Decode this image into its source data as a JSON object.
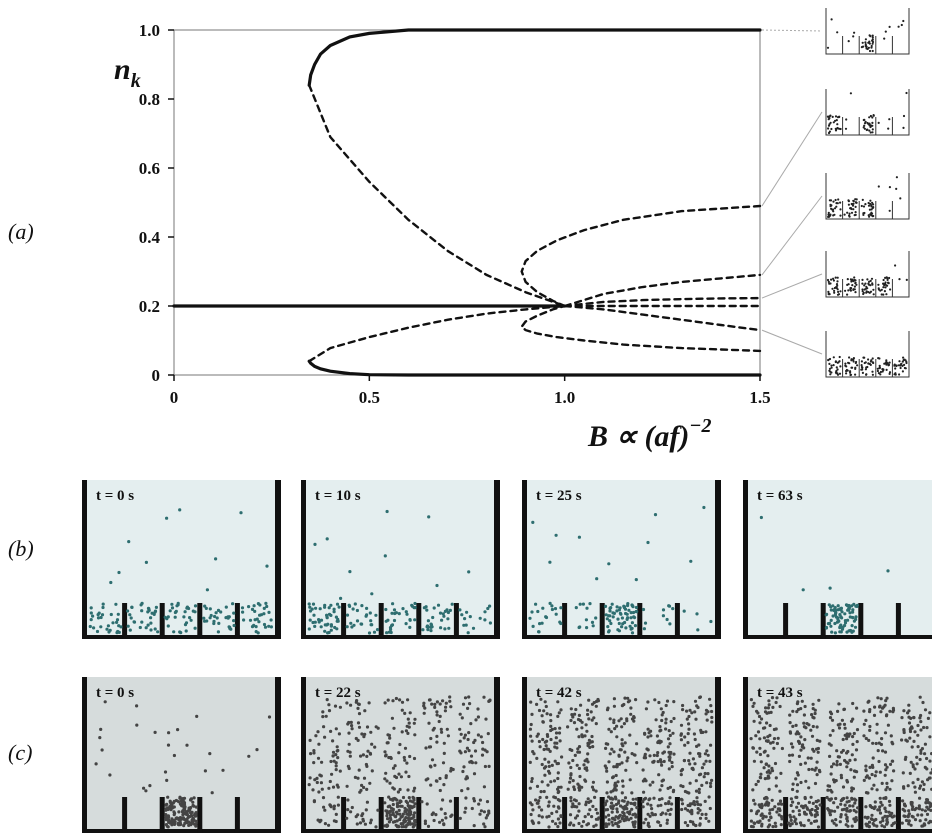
{
  "panel_labels": {
    "a": "(a)",
    "b": "(b)",
    "c": "(c)"
  },
  "chart_data": {
    "type": "line",
    "title": "",
    "xlabel": "B ∝ (af)",
    "xlabel_exponent": "−2",
    "ylabel": "n",
    "ylabel_subscript": "k",
    "xlim": [
      0,
      1.5
    ],
    "ylim": [
      0,
      1.0
    ],
    "xticks": [
      "0",
      "0.5",
      "1.0",
      "1.5"
    ],
    "yticks": [
      "0",
      "0.2",
      "0.4",
      "0.6",
      "0.8",
      "1.0"
    ],
    "grid": false,
    "series": [
      {
        "style": "solid",
        "x": [
          1.5,
          1.2,
          0.9,
          0.6,
          0.5,
          0.45,
          0.4,
          0.375,
          0.36,
          0.35,
          0.346
        ],
        "y": [
          1.0,
          1.0,
          1.0,
          1.0,
          0.99,
          0.98,
          0.955,
          0.93,
          0.9,
          0.87,
          0.84
        ]
      },
      {
        "style": "solid",
        "x": [
          1.5,
          1.2,
          0.9,
          0.6,
          0.5,
          0.45,
          0.4,
          0.375,
          0.36,
          0.35,
          0.346
        ],
        "y": [
          0.0,
          0.0,
          0.0,
          0.0,
          0.001,
          0.004,
          0.011,
          0.018,
          0.025,
          0.034,
          0.04
        ]
      },
      {
        "style": "solid",
        "x": [
          0,
          1.0
        ],
        "y": [
          0.2,
          0.2
        ]
      },
      {
        "style": "dashed",
        "x": [
          0.346,
          0.4,
          0.5,
          0.6,
          0.7,
          0.8,
          0.9,
          1.0
        ],
        "y": [
          0.84,
          0.69,
          0.56,
          0.45,
          0.36,
          0.29,
          0.24,
          0.2
        ]
      },
      {
        "style": "dashed",
        "x": [
          0.346,
          0.4,
          0.5,
          0.6,
          0.7,
          0.8,
          0.9,
          1.0
        ],
        "y": [
          0.04,
          0.078,
          0.11,
          0.137,
          0.16,
          0.178,
          0.19,
          0.2
        ]
      },
      {
        "style": "dashed",
        "x": [
          1.5,
          1.3,
          1.15,
          1.05,
          0.98,
          0.93,
          0.9,
          0.89,
          0.9,
          0.93,
          0.97,
          1.0
        ],
        "y": [
          0.49,
          0.475,
          0.45,
          0.42,
          0.39,
          0.36,
          0.33,
          0.3,
          0.27,
          0.24,
          0.215,
          0.2
        ]
      },
      {
        "style": "dashed",
        "x": [
          1.5,
          1.3,
          1.15,
          1.05,
          0.98,
          0.93,
          0.9,
          0.89,
          0.9,
          0.93,
          0.97,
          1.0
        ],
        "y": [
          0.07,
          0.078,
          0.088,
          0.1,
          0.11,
          0.12,
          0.13,
          0.14,
          0.155,
          0.172,
          0.19,
          0.2
        ]
      },
      {
        "style": "dashed",
        "x": [
          1.0,
          1.1,
          1.2,
          1.3,
          1.4,
          1.5
        ],
        "y": [
          0.2,
          0.235,
          0.255,
          0.27,
          0.28,
          0.29
        ]
      },
      {
        "style": "dashed",
        "x": [
          1.0,
          1.1,
          1.2,
          1.3,
          1.4,
          1.5
        ],
        "y": [
          0.2,
          0.212,
          0.217,
          0.22,
          0.222,
          0.223
        ]
      },
      {
        "style": "dashed",
        "x": [
          1.0,
          1.1,
          1.2,
          1.3,
          1.4,
          1.5
        ],
        "y": [
          0.2,
          0.19,
          0.175,
          0.16,
          0.145,
          0.13
        ]
      },
      {
        "style": "dashed",
        "x": [
          1.0,
          1.1,
          1.2,
          1.3,
          1.4,
          1.5
        ],
        "y": [
          0.2,
          0.2,
          0.2,
          0.2,
          0.2,
          0.2
        ]
      }
    ],
    "insets_for_y": [
      1.0,
      0.49,
      0.29,
      0.223,
      0.13
    ]
  },
  "row_b": {
    "times": [
      "t = 0 s",
      "t = 10 s",
      "t = 25 s",
      "t = 63 s"
    ]
  },
  "row_c": {
    "times": [
      "t = 0 s",
      "t = 22 s",
      "t = 42 s",
      "t = 43 s"
    ]
  },
  "colors": {
    "particle_b": "#2e6e70",
    "particle_c": "#444444",
    "frame": "#111111",
    "bg_b": "#e4eeef",
    "bg_c": "#d6dcdc",
    "leader": "#aaaaaa"
  }
}
